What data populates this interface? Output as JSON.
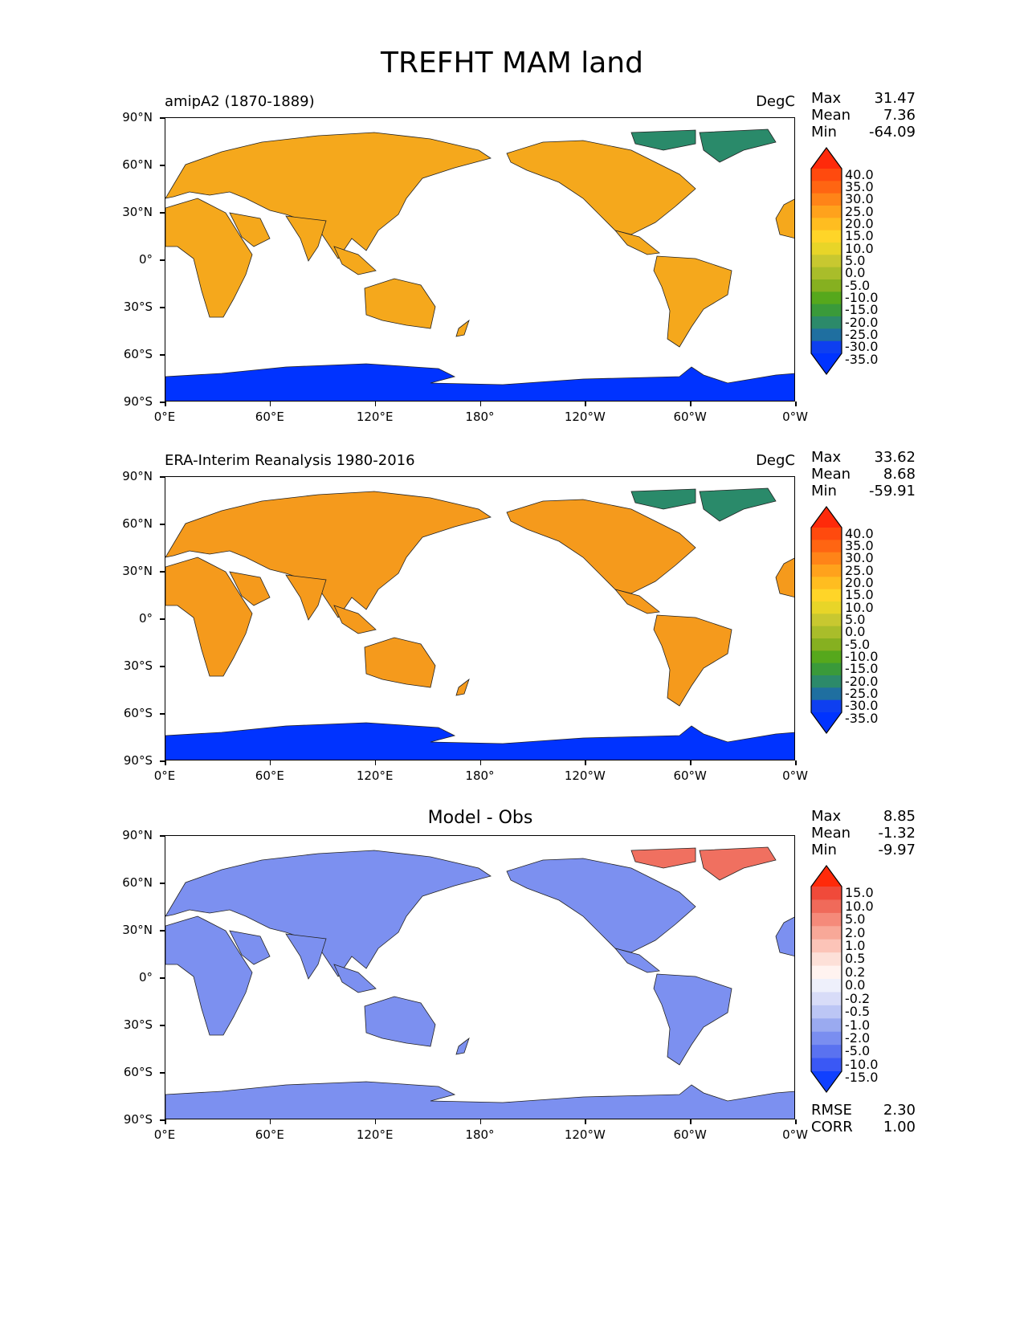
{
  "figure": {
    "title": "TREFHT MAM land"
  },
  "panels": [
    {
      "id": "model",
      "left_label": "amipA2 (1870-1889)",
      "units": "DegC",
      "center_title": "",
      "stats": [
        {
          "label": "Max",
          "value": "31.47"
        },
        {
          "label": "Mean",
          "value": "7.36"
        },
        {
          "label": "Min",
          "value": "-64.09"
        }
      ],
      "colorbar_ticks": [
        "40.0",
        "35.0",
        "30.0",
        "25.0",
        "20.0",
        "15.0",
        "10.0",
        "5.0",
        "0.0",
        "-5.0",
        "-10.0",
        "-15.0",
        "-20.0",
        "-25.0",
        "-30.0",
        "-35.0"
      ],
      "colorbar_colors": [
        "#ff2a0a",
        "#ff4a0e",
        "#ff6512",
        "#ff8418",
        "#ffa21c",
        "#ffbd20",
        "#ffd528",
        "#e8d528",
        "#c8c830",
        "#a9bd2a",
        "#86b020",
        "#56a81c",
        "#3a9a3a",
        "#2c8a6a",
        "#1f6fa0",
        "#0e3ff0",
        "#0033ff"
      ],
      "fields": {
        "land": "#f5a81c",
        "arctic": "#2a8a6a",
        "antarctic": "#0033ff"
      }
    },
    {
      "id": "obs",
      "left_label": "ERA-Interim Reanalysis 1980-2016",
      "units": "DegC",
      "center_title": "",
      "stats": [
        {
          "label": "Max",
          "value": "33.62"
        },
        {
          "label": "Mean",
          "value": "8.68"
        },
        {
          "label": "Min",
          "value": "-59.91"
        }
      ],
      "colorbar_ticks": [
        "40.0",
        "35.0",
        "30.0",
        "25.0",
        "20.0",
        "15.0",
        "10.0",
        "5.0",
        "0.0",
        "-5.0",
        "-10.0",
        "-15.0",
        "-20.0",
        "-25.0",
        "-30.0",
        "-35.0"
      ],
      "colorbar_colors": [
        "#ff2a0a",
        "#ff4a0e",
        "#ff6512",
        "#ff8418",
        "#ffa21c",
        "#ffbd20",
        "#ffd528",
        "#e8d528",
        "#c8c830",
        "#a9bd2a",
        "#86b020",
        "#56a81c",
        "#3a9a3a",
        "#2c8a6a",
        "#1f6fa0",
        "#0e3ff0",
        "#0033ff"
      ],
      "fields": {
        "land": "#f59a1c",
        "arctic": "#2a8a6a",
        "antarctic": "#0033ff"
      }
    },
    {
      "id": "diff",
      "left_label": "",
      "units": "",
      "center_title": "Model - Obs",
      "stats": [
        {
          "label": "Max",
          "value": "8.85"
        },
        {
          "label": "Mean",
          "value": "-1.32"
        },
        {
          "label": "Min",
          "value": "-9.97"
        }
      ],
      "extra_stats": [
        {
          "label": "RMSE",
          "value": "2.30"
        },
        {
          "label": "CORR",
          "value": "1.00"
        }
      ],
      "colorbar_ticks": [
        "15.0",
        "10.0",
        "5.0",
        "2.0",
        "1.0",
        "0.5",
        "0.2",
        "0.0",
        "-0.2",
        "-0.5",
        "-1.0",
        "-2.0",
        "-5.0",
        "-10.0",
        "-15.0"
      ],
      "colorbar_colors": [
        "#ff2a0a",
        "#f04a3a",
        "#f06a5a",
        "#f58a7a",
        "#f8a898",
        "#fcc4b8",
        "#fde0d8",
        "#fff3f0",
        "#eef0fb",
        "#d8dcf8",
        "#bcc6f5",
        "#9aaaf0",
        "#7a8ef0",
        "#5a72f0",
        "#3a58f5",
        "#1040ff"
      ],
      "fields": {
        "land": "#7c90f0",
        "arctic": "#f07060",
        "antarctic": "#7c90f0"
      }
    }
  ],
  "axes": {
    "lat_ticks": [
      "90°N",
      "60°N",
      "30°N",
      "0°",
      "30°S",
      "60°S",
      "90°S"
    ],
    "lon_ticks": [
      "0°E",
      "60°E",
      "120°E",
      "180°",
      "120°W",
      "60°W",
      "0°W"
    ]
  }
}
